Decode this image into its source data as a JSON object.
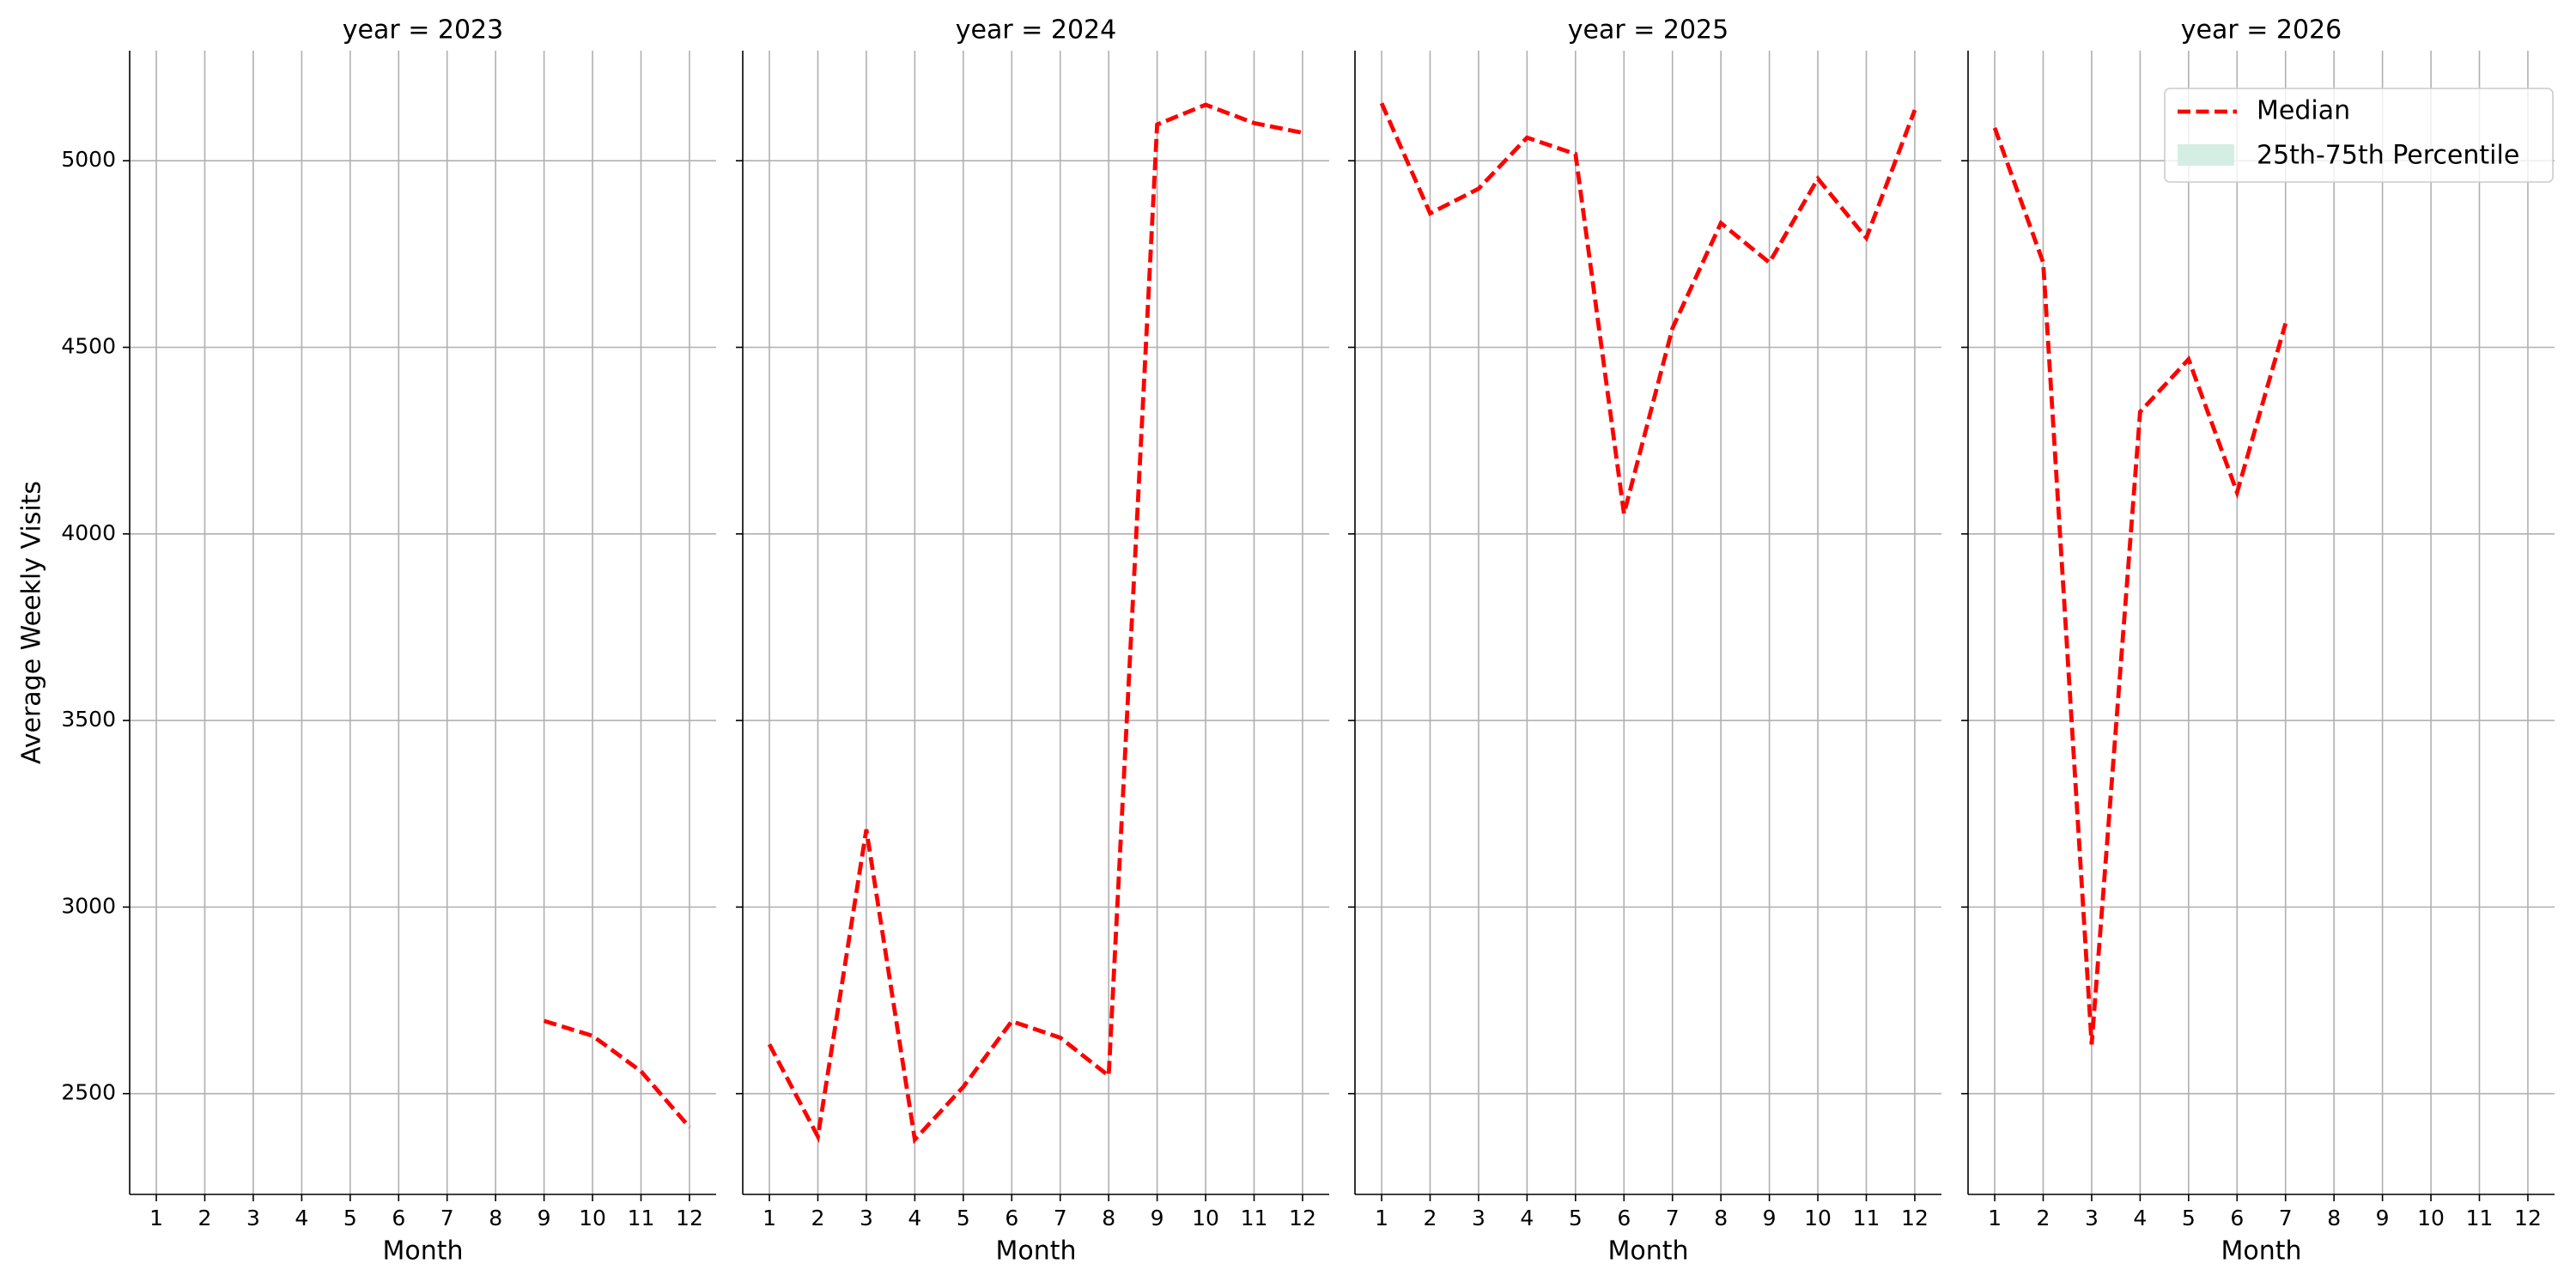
{
  "chart_data": [
    {
      "type": "line",
      "title": "year = 2023",
      "xlabel": "Month",
      "ylabel": "Average Weekly Visits",
      "x": [
        1,
        2,
        3,
        4,
        5,
        6,
        7,
        8,
        9,
        10,
        11,
        12
      ],
      "series": [
        {
          "name": "Median",
          "color": "#ff0000",
          "values": [
            null,
            null,
            null,
            null,
            null,
            null,
            null,
            null,
            2695,
            2655,
            2560,
            2410
          ]
        }
      ],
      "xlim": [
        0.45,
        12.55
      ],
      "xticks": [
        1,
        2,
        3,
        4,
        5,
        6,
        7,
        8,
        9,
        10,
        11,
        12
      ],
      "ylim": [
        2230,
        5295
      ],
      "yticks": [
        2500,
        3000,
        3500,
        4000,
        4500,
        5000
      ],
      "grid": true
    },
    {
      "type": "line",
      "title": "year = 2024",
      "xlabel": "Month",
      "x": [
        1,
        2,
        3,
        4,
        5,
        6,
        7,
        8,
        9,
        10,
        11,
        12
      ],
      "series": [
        {
          "name": "Median",
          "color": "#ff0000",
          "values": [
            2632,
            2385,
            3208,
            2377,
            2518,
            2694,
            2650,
            2548,
            5097,
            5150,
            5101,
            5075
          ]
        }
      ],
      "xlim": [
        0.45,
        12.55
      ],
      "xticks": [
        1,
        2,
        3,
        4,
        5,
        6,
        7,
        8,
        9,
        10,
        11,
        12
      ],
      "ylim": [
        2230,
        5295
      ],
      "yticks": [
        2500,
        3000,
        3500,
        4000,
        4500,
        5000
      ],
      "grid": true
    },
    {
      "type": "line",
      "title": "year = 2025",
      "xlabel": "Month",
      "x": [
        1,
        2,
        3,
        4,
        5,
        6,
        7,
        8,
        9,
        10,
        11,
        12
      ],
      "series": [
        {
          "name": "Median",
          "color": "#ff0000",
          "values": [
            5154,
            4859,
            4925,
            5062,
            5018,
            4054,
            4551,
            4833,
            4727,
            4952,
            4793,
            5136
          ]
        }
      ],
      "xlim": [
        0.45,
        12.55
      ],
      "xticks": [
        1,
        2,
        3,
        4,
        5,
        6,
        7,
        8,
        9,
        10,
        11,
        12
      ],
      "ylim": [
        2230,
        5295
      ],
      "yticks": [
        2500,
        3000,
        3500,
        4000,
        4500,
        5000
      ],
      "grid": true
    },
    {
      "type": "line",
      "title": "year = 2026",
      "xlabel": "Month",
      "x": [
        1,
        2,
        3,
        4,
        5,
        6,
        7,
        8,
        9,
        10,
        11,
        12
      ],
      "series": [
        {
          "name": "Median",
          "color": "#ff0000",
          "values": [
            5088,
            4727,
            2632,
            4327,
            4468,
            4111,
            4564,
            null,
            null,
            null,
            null,
            null
          ]
        }
      ],
      "band": {
        "name": "25th-75th Percentile",
        "color": "#d5eee4"
      },
      "legend": "upper right",
      "xlim": [
        0.45,
        12.55
      ],
      "xticks": [
        1,
        2,
        3,
        4,
        5,
        6,
        7,
        8,
        9,
        10,
        11,
        12
      ],
      "ylim": [
        2230,
        5295
      ],
      "yticks": [
        2500,
        3000,
        3500,
        4000,
        4500,
        5000
      ],
      "grid": true
    }
  ]
}
